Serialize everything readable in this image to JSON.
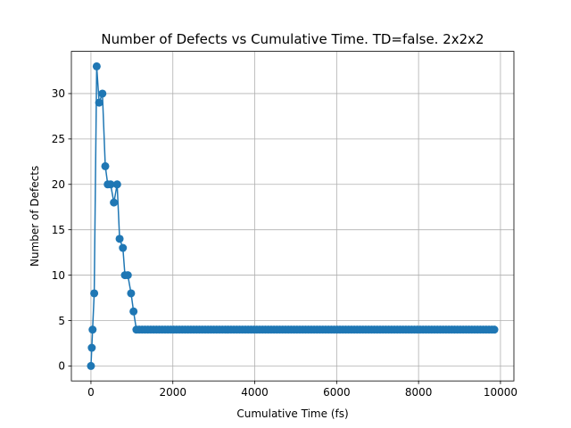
{
  "chart_data": {
    "type": "line",
    "title": "Number of Defects vs Cumulative Time. TD=false. 2x2x2",
    "xlabel": "Cumulative Time (fs)",
    "ylabel": "Number of Defects",
    "xlim": [
      -478,
      10328
    ],
    "ylim": [
      -1.65,
      34.65
    ],
    "xticks": [
      0,
      2000,
      4000,
      6000,
      8000,
      10000
    ],
    "yticks": [
      0,
      5,
      10,
      15,
      20,
      25,
      30
    ],
    "grid": true,
    "colors": {
      "series": "#1f77b4",
      "grid": "#b0b0b0"
    },
    "x": [
      0,
      20,
      40,
      80,
      140,
      200,
      280,
      350,
      410,
      480,
      560,
      640,
      700,
      780,
      830,
      900,
      980,
      1040,
      1110,
      1180,
      1250,
      1320,
      1390,
      1460,
      1530,
      1600,
      1670,
      1740,
      1810,
      1880,
      1950,
      2020,
      2090,
      2160,
      2230,
      2300,
      2370,
      2440,
      2510,
      2580,
      2650,
      2720,
      2790,
      2860,
      2930,
      3000,
      3070,
      3140,
      3210,
      3280,
      3350,
      3420,
      3490,
      3560,
      3630,
      3700,
      3770,
      3840,
      3910,
      3980,
      4050,
      4120,
      4190,
      4260,
      4330,
      4400,
      4470,
      4540,
      4610,
      4680,
      4750,
      4820,
      4890,
      4960,
      5030,
      5100,
      5170,
      5240,
      5310,
      5380,
      5450,
      5520,
      5590,
      5660,
      5730,
      5800,
      5870,
      5940,
      6010,
      6080,
      6150,
      6220,
      6290,
      6360,
      6430,
      6500,
      6570,
      6640,
      6710,
      6780,
      6850,
      6920,
      6990,
      7060,
      7130,
      7200,
      7270,
      7340,
      7410,
      7480,
      7550,
      7620,
      7690,
      7760,
      7830,
      7900,
      7970,
      8040,
      8110,
      8180,
      8250,
      8320,
      8390,
      8460,
      8530,
      8600,
      8670,
      8740,
      8810,
      8880,
      8950,
      9020,
      9090,
      9160,
      9230,
      9300,
      9370,
      9440,
      9510,
      9580,
      9650,
      9720,
      9790,
      9850
    ],
    "series": [
      {
        "values": [
          0,
          2,
          4,
          8,
          33,
          29,
          30,
          22,
          20,
          20,
          18,
          20,
          14,
          13,
          10,
          10,
          8,
          6,
          4,
          4,
          4,
          4,
          4,
          4,
          4,
          4,
          4,
          4,
          4,
          4,
          4,
          4,
          4,
          4,
          4,
          4,
          4,
          4,
          4,
          4,
          4,
          4,
          4,
          4,
          4,
          4,
          4,
          4,
          4,
          4,
          4,
          4,
          4,
          4,
          4,
          4,
          4,
          4,
          4,
          4,
          4,
          4,
          4,
          4,
          4,
          4,
          4,
          4,
          4,
          4,
          4,
          4,
          4,
          4,
          4,
          4,
          4,
          4,
          4,
          4,
          4,
          4,
          4,
          4,
          4,
          4,
          4,
          4,
          4,
          4,
          4,
          4,
          4,
          4,
          4,
          4,
          4,
          4,
          4,
          4,
          4,
          4,
          4,
          4,
          4,
          4,
          4,
          4,
          4,
          4,
          4,
          4,
          4,
          4,
          4,
          4,
          4,
          4,
          4,
          4,
          4,
          4,
          4,
          4,
          4,
          4,
          4,
          4,
          4,
          4,
          4,
          4,
          4,
          4,
          4,
          4,
          4,
          4,
          4,
          4,
          4,
          4,
          4,
          4
        ]
      }
    ]
  }
}
